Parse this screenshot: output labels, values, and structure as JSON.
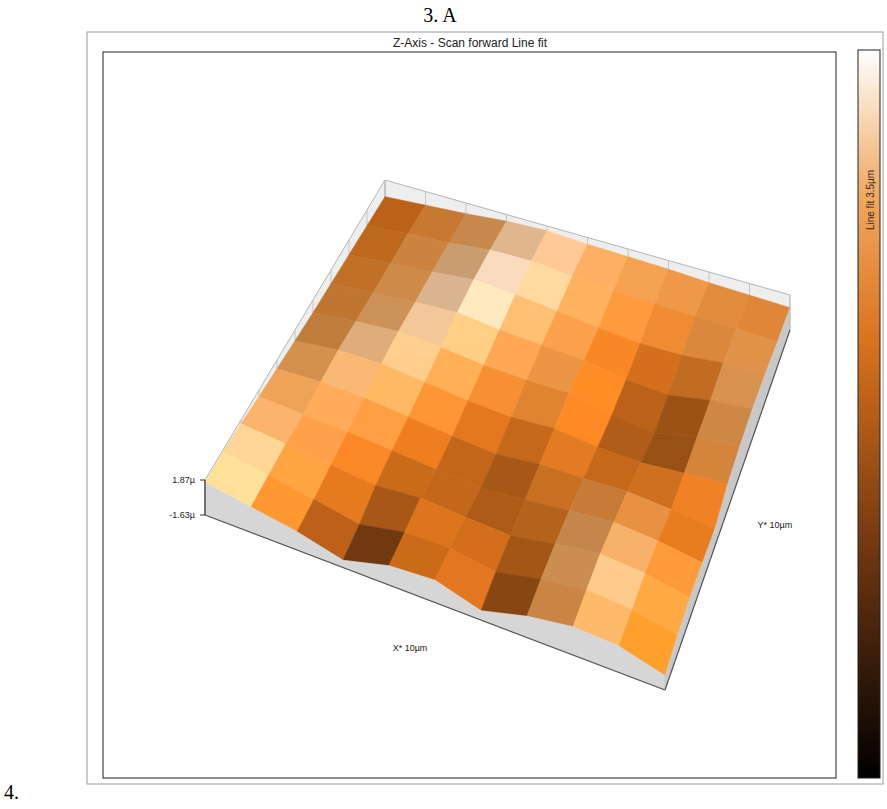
{
  "page": {
    "heading": "3. A",
    "list_number": "4."
  },
  "chart_data": {
    "type": "surface",
    "title": "Z-Axis - Scan forward   Line fit",
    "xlabel": "X* 10µm",
    "ylabel": "Y* 10µm",
    "colorbar_label": "Line fit 3.5µm",
    "x": [
      0,
      1,
      2,
      3,
      4,
      5,
      6,
      7,
      8,
      9,
      10
    ],
    "y": [
      0,
      1,
      2,
      3,
      4,
      5,
      6,
      7,
      8,
      9,
      10
    ],
    "xlim": [
      0,
      10
    ],
    "ylim": [
      0,
      10
    ],
    "zlim": [
      -1.63,
      1.87
    ],
    "zticks": [
      {
        "value": 1.87,
        "label": "1.87µ"
      },
      {
        "value": -1.63,
        "label": "-1.63µ"
      }
    ],
    "color_range": [
      -1.63,
      1.87
    ],
    "grid": true,
    "z": [
      [
        1.6,
        0.9,
        0.2,
        -0.9,
        0.3,
        0.6,
        -0.7,
        0.5,
        1.2,
        1.0,
        -0.2
      ],
      [
        1.7,
        1.0,
        0.3,
        -0.5,
        0.4,
        0.5,
        -0.2,
        0.8,
        1.4,
        1.1,
        0.2
      ],
      [
        1.5,
        1.1,
        0.6,
        0.2,
        0.6,
        0.3,
        0.1,
        0.9,
        1.5,
        1.2,
        0.4
      ],
      [
        1.2,
        1.0,
        0.8,
        0.5,
        0.2,
        -0.1,
        0.3,
        0.8,
        1.2,
        0.9,
        0.3
      ],
      [
        1.0,
        1.2,
        1.1,
        0.7,
        0.3,
        0.0,
        0.5,
        0.6,
        0.8,
        0.5,
        0.1
      ],
      [
        0.8,
        1.3,
        1.4,
        1.0,
        0.6,
        0.4,
        0.7,
        0.3,
        0.2,
        0.6,
        0.9
      ],
      [
        0.6,
        1.1,
        1.5,
        1.3,
        0.9,
        0.8,
        0.9,
        0.1,
        -0.3,
        0.7,
        1.2
      ],
      [
        0.5,
        0.9,
        1.3,
        1.6,
        1.2,
        1.0,
        0.8,
        0.2,
        0.0,
        0.8,
        1.3
      ],
      [
        0.4,
        0.8,
        1.2,
        1.7,
        1.5,
        1.1,
        0.7,
        0.4,
        0.5,
        1.0,
        1.1
      ],
      [
        0.3,
        0.7,
        1.0,
        1.5,
        1.6,
        1.3,
        1.0,
        0.9,
        0.9,
        0.9,
        0.8
      ],
      [
        0.2,
        0.5,
        0.8,
        1.2,
        1.4,
        1.2,
        1.1,
        1.0,
        0.8,
        0.7,
        0.6
      ]
    ]
  }
}
